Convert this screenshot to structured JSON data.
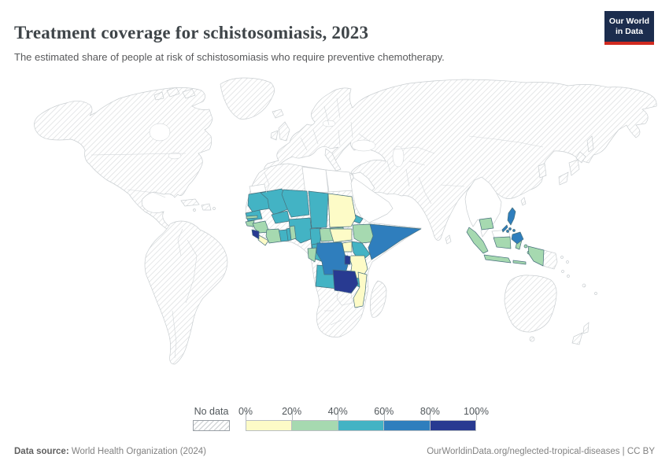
{
  "header": {
    "title": "Treatment coverage for schistosomiasis, 2023",
    "subtitle": "The estimated share of people at risk of schistosomiasis who require preventive chemotherapy.",
    "logo": {
      "line1": "Our World",
      "line2": "in Data"
    }
  },
  "theme": {
    "logo_navy": "#1c2d4e",
    "logo_red": "#d12a20",
    "no_data_stroke": "#c9ced1",
    "country_stroke": "#47707c",
    "hatch_line": "#d8dadc"
  },
  "legend": {
    "no_data_label": "No data",
    "tick_labels": [
      "0%",
      "20%",
      "40%",
      "60%",
      "80%",
      "100%"
    ],
    "bins": [
      {
        "label": "0%–20%",
        "color": "#fdfbc7"
      },
      {
        "label": "20%–40%",
        "color": "#a6d9b0"
      },
      {
        "label": "40%–60%",
        "color": "#43b3c4"
      },
      {
        "label": "60%–80%",
        "color": "#2f7ebd"
      },
      {
        "label": "80%–100%",
        "color": "#283a91"
      }
    ]
  },
  "footer": {
    "source_label": "Data source:",
    "source_value": " World Health Organization (2024)",
    "link_text": "OurWorldinData.org/neglected-tropical-diseases",
    "license_suffix": " | CC BY"
  },
  "chart_data": {
    "type": "choropleth",
    "title": "Treatment coverage for schistosomiasis, 2023",
    "subtitle": "The estimated share of people at risk of schistosomiasis who require preventive chemotherapy.",
    "year": 2023,
    "unit": "%",
    "color_scheme": "YlGnBu (5 bins)",
    "bin_edges": [
      0,
      20,
      40,
      60,
      80,
      100
    ],
    "legend_position": "bottom",
    "bins": [
      {
        "range": "0%–20%",
        "color": "#fdfbc7",
        "countries": [
          "Liberia",
          "Sudan",
          "South Sudan",
          "Uganda",
          "Tanzania",
          "Mozambique"
        ]
      },
      {
        "range": "20%–40%",
        "color": "#a6d9b0",
        "countries": [
          "Gambia",
          "Guinea-Bissau",
          "Guinea",
          "Côte d'Ivoire",
          "Benin",
          "Central African Republic",
          "Equatorial Guinea",
          "Gabon",
          "Ethiopia",
          "Cambodia",
          "Indonesia"
        ]
      },
      {
        "range": "40%–60%",
        "color": "#43b3c4",
        "countries": [
          "Mauritania",
          "Senegal",
          "Mali",
          "Burkina Faso",
          "Niger",
          "Chad",
          "Ghana",
          "Togo",
          "Nigeria",
          "Cameroon",
          "Republic of the Congo",
          "Eritrea",
          "Kenya",
          "Angola",
          "Malawi"
        ]
      },
      {
        "range": "60%–80%",
        "color": "#2f7ebd",
        "countries": [
          "Democratic Republic of Congo",
          "Somalia",
          "Philippines"
        ]
      },
      {
        "range": "80%–100%",
        "color": "#283a91",
        "countries": [
          "Sierra Leone",
          "Rwanda",
          "Burundi",
          "Zambia"
        ]
      }
    ],
    "white_unhatched_regions": [
      "Egypt",
      "Libya",
      "Western Sahara",
      "Saudi Arabia",
      "Yemen",
      "Iraq",
      "Syria",
      "Jordan",
      "Myanmar",
      "Thailand",
      "Laos",
      "Vietnam",
      "Malaysia"
    ],
    "no_data_pattern": "diagonal-hatch",
    "no_data_examples": [
      "Canada",
      "United States",
      "Mexico",
      "Brazil",
      "Argentina",
      "Europe",
      "Russia",
      "China",
      "India",
      "Japan",
      "Australia",
      "New Zealand",
      "Morocco",
      "Algeria",
      "Tunisia",
      "South Africa",
      "Zimbabwe",
      "Botswana",
      "Namibia",
      "Madagascar",
      "Papua New Guinea"
    ]
  }
}
